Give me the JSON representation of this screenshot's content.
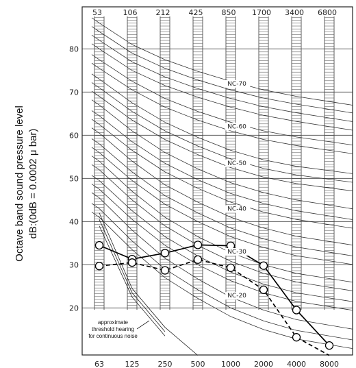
{
  "chart_data": {
    "type": "line",
    "ylabel_line1": "Octave band sound pressure level",
    "ylabel_line2": "dB:(0dB = 0.0002 μ bar)",
    "x_categories_bottom": [
      "63",
      "125",
      "250",
      "500",
      "1000",
      "2000",
      "4000",
      "8000"
    ],
    "x_band_edges_top": [
      "53",
      "106",
      "212",
      "425",
      "850",
      "1700",
      "3400",
      "6800"
    ],
    "y_ticks": [
      20,
      30,
      40,
      50,
      60,
      70,
      80
    ],
    "ylim": [
      11,
      90
    ],
    "nc_curve_labels": [
      "NC-70",
      "NC-60",
      "NC-50",
      "NC-40",
      "NC-30",
      "NC-20"
    ],
    "nc_curve_label_positions": [
      {
        "label": "NC-70",
        "x_index": 3.9,
        "y": 71.5
      },
      {
        "label": "NC-60",
        "x_index": 3.9,
        "y": 61.6
      },
      {
        "label": "NC-50",
        "x_index": 3.9,
        "y": 53.1
      },
      {
        "label": "NC-40",
        "x_index": 3.9,
        "y": 42.5
      },
      {
        "label": "NC-30",
        "x_index": 3.9,
        "y": 32.6
      },
      {
        "label": "NC-20",
        "x_index": 3.9,
        "y": 22.4
      }
    ],
    "nc_curves": [
      [
        86.0,
        81.0,
        77.5,
        74.8,
        72.5,
        70.5,
        69.0,
        67.8
      ],
      [
        84.0,
        79.0,
        75.5,
        72.8,
        70.5,
        68.6,
        67.2,
        66.0
      ],
      [
        82.0,
        77.0,
        73.5,
        70.8,
        68.5,
        66.6,
        65.2,
        64.0
      ],
      [
        80.0,
        75.0,
        71.5,
        68.8,
        66.5,
        64.6,
        63.2,
        62.0
      ],
      [
        77.5,
        72.5,
        68.5,
        65.5,
        63.0,
        61.0,
        59.6,
        58.5
      ],
      [
        75.5,
        70.5,
        66.5,
        63.5,
        61.0,
        59.0,
        57.6,
        56.5
      ],
      [
        73.0,
        67.5,
        63.0,
        59.5,
        56.5,
        54.3,
        52.8,
        51.8
      ],
      [
        71.0,
        65.5,
        61.0,
        57.5,
        54.5,
        52.3,
        50.8,
        49.8
      ],
      [
        69.0,
        63.5,
        59.0,
        55.5,
        52.5,
        50.3,
        48.8,
        47.8
      ],
      [
        67.0,
        61.0,
        56.0,
        52.2,
        49.0,
        46.7,
        45.0,
        43.8
      ],
      [
        64.5,
        58.5,
        53.5,
        49.7,
        46.5,
        44.2,
        42.5,
        41.3
      ],
      [
        62.5,
        56.5,
        51.5,
        47.7,
        44.5,
        42.2,
        40.5,
        39.3
      ],
      [
        60.5,
        54.0,
        48.5,
        44.5,
        41.0,
        38.5,
        36.6,
        35.4
      ],
      [
        58.0,
        51.5,
        46.0,
        42.0,
        38.5,
        36.0,
        34.1,
        32.9
      ],
      [
        56.0,
        49.5,
        44.0,
        40.0,
        36.5,
        34.0,
        32.1,
        30.9
      ],
      [
        54.0,
        47.0,
        41.0,
        36.5,
        32.8,
        30.0,
        28.0,
        26.8
      ],
      [
        52.0,
        45.0,
        39.0,
        34.5,
        30.8,
        28.0,
        26.0,
        24.8
      ],
      [
        49.5,
        42.5,
        36.5,
        32.0,
        28.3,
        25.5,
        23.5,
        22.3
      ],
      [
        47.5,
        40.5,
        34.5,
        30.0,
        26.3,
        23.5,
        21.5,
        20.3
      ],
      [
        45.5,
        38.0,
        31.5,
        26.7,
        22.5,
        19.5,
        17.3,
        16.0
      ],
      [
        43.0,
        35.5,
        29.0,
        24.2,
        20.0,
        17.0,
        14.8,
        13.5
      ],
      [
        41.0,
        33.5,
        27.0,
        22.2,
        18.0,
        15.0,
        12.8,
        11.5
      ]
    ],
    "threshold_curves": [
      [
        42.0,
        24.5,
        15.5,
        9.0
      ],
      [
        40.5,
        23.5,
        14.5,
        8.0
      ],
      [
        39.0,
        22.5,
        13.5,
        7.0
      ]
    ],
    "threshold_label": [
      "approximate",
      "threshold hearing",
      "for continuous noise"
    ],
    "series": [
      {
        "style": "solid",
        "values": [
          34.5,
          31.3,
          32.7,
          34.6,
          34.4,
          29.8,
          19.5,
          11.3
        ]
      },
      {
        "style": "dashed",
        "values": [
          29.7,
          30.5,
          28.7,
          31.2,
          29.3,
          24.2,
          13.2,
          9.0
        ]
      }
    ],
    "grid": true
  }
}
